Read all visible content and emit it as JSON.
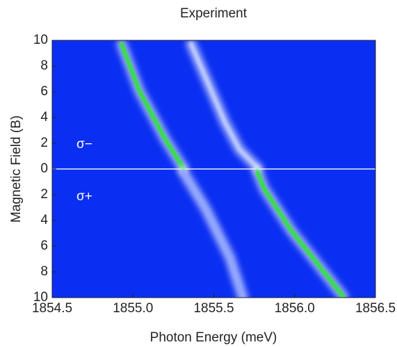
{
  "chart_data": {
    "type": "line",
    "title": "Experiment",
    "x_label": "Photon Energy (meV)",
    "y_label": "Magnetic Field (B)",
    "annotations": [
      "σ−",
      "σ+"
    ],
    "xlim": [
      1854.5,
      1856.5
    ],
    "xticks": [
      1854.5,
      {
        "value": 1855,
        "label": "1855.0"
      },
      1855.5,
      {
        "value": 1856,
        "label": "1856.0"
      },
      1856.5
    ],
    "ylim": [
      -10,
      10
    ],
    "yticks": [
      {
        "value": -10,
        "label": "10"
      },
      {
        "value": -8,
        "label": "8"
      },
      {
        "value": -6,
        "label": "6"
      },
      {
        "value": -4,
        "label": "4"
      },
      {
        "value": -2,
        "label": "2"
      },
      0,
      2,
      4,
      6,
      8,
      10
    ],
    "background": "#0b2ff2",
    "series": [
      {
        "color": "#2fe33a",
        "x": [
          1854.93,
          1855.04,
          1855.2,
          1855.31
        ],
        "values": [
          9.7,
          6.05,
          2.3,
          0.1
        ]
      },
      {
        "color": "#b8c8ff",
        "x": [
          1855.36,
          1855.57,
          1855.66,
          1855.77
        ],
        "values": [
          9.7,
          3.6,
          1.5,
          0.1
        ]
      },
      {
        "color": "#2fe33a",
        "x": [
          1855.77,
          1855.81,
          1855.98,
          1856.3
        ],
        "values": [
          -0.2,
          -1.5,
          -4.8,
          -9.9
        ]
      },
      {
        "color": "#8fa6ff",
        "x": [
          1855.31,
          1855.45,
          1855.6,
          1855.68
        ],
        "values": [
          -0.2,
          -3.1,
          -6.9,
          -10
        ]
      }
    ]
  }
}
